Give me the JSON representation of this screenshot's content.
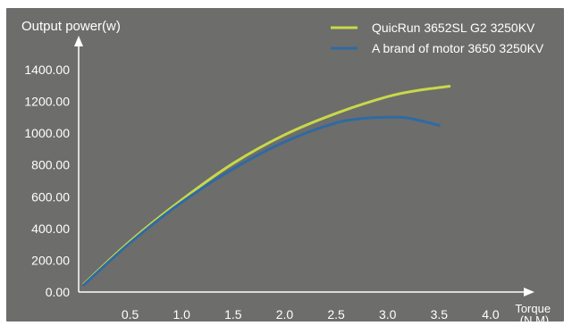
{
  "chart_data": {
    "type": "line",
    "ylabel": "Output power(w)",
    "xlabel": [
      "Torque",
      "(N.M)"
    ],
    "y_ticks": [
      "0.00",
      "200.00",
      "400.00",
      "600.00",
      "800.00",
      "1000.00",
      "1200.00",
      "1400.00"
    ],
    "x_ticks": [
      "0.5",
      "1.0",
      "1.5",
      "2.0",
      "2.5",
      "3.0",
      "3.5",
      "4.0"
    ],
    "xlim": [
      0,
      4.2
    ],
    "ylim": [
      0,
      1400
    ],
    "grid": false,
    "legend_position": "top-right",
    "colors": {
      "background": "#6d6d6b",
      "border": "#ffffff",
      "axis": "#ffffff",
      "text": "#ffffff"
    },
    "series": [
      {
        "name": "QuicRun 3652SL G2 3250KV",
        "color": "#c8d84a",
        "x": [
          0.05,
          0.5,
          1.0,
          1.5,
          2.0,
          2.5,
          3.0,
          3.3,
          3.6
        ],
        "y": [
          50,
          320,
          580,
          810,
          990,
          1125,
          1230,
          1270,
          1295
        ]
      },
      {
        "name": "A brand of motor 3650 3250KV",
        "color": "#2f6aa3",
        "x": [
          0.05,
          0.5,
          1.0,
          1.5,
          2.0,
          2.5,
          2.8,
          3.0,
          3.2,
          3.5
        ],
        "y": [
          45,
          310,
          565,
          775,
          945,
          1065,
          1095,
          1100,
          1095,
          1050
        ]
      }
    ]
  }
}
